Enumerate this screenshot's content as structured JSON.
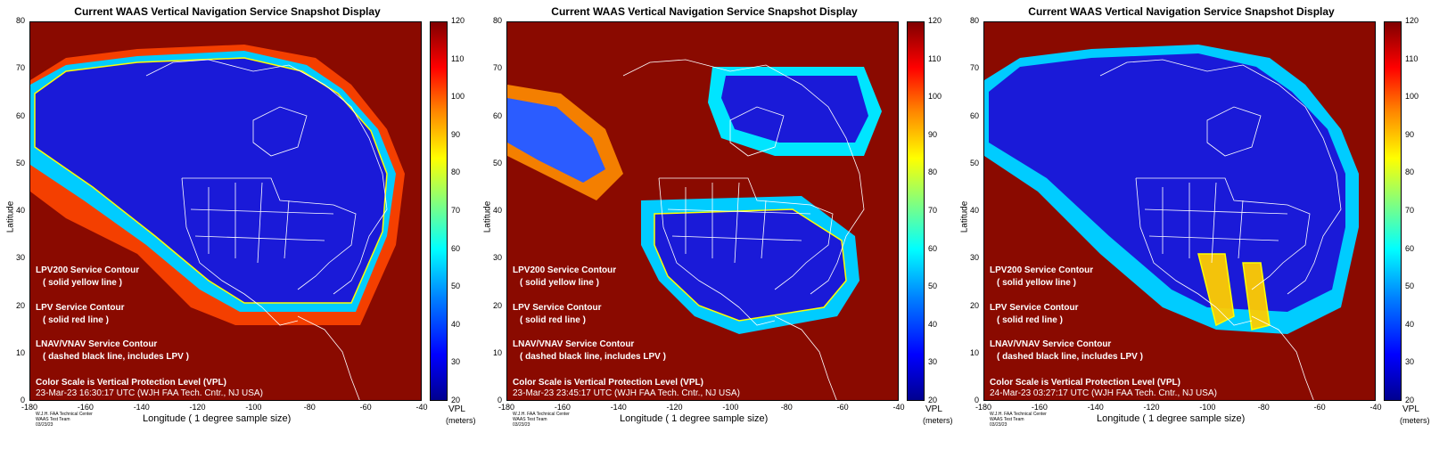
{
  "panels": [
    {
      "title": "Current WAAS Vertical Navigation Service Snapshot Display",
      "timestamp": "23-Mar-23 16:30:17 UTC  (WJH FAA Tech. Cntr., NJ USA)"
    },
    {
      "title": "Current WAAS Vertical Navigation Service Snapshot Display",
      "timestamp": "23-Mar-23 23:45:17 UTC  (WJH FAA Tech. Cntr., NJ USA)"
    },
    {
      "title": "Current WAAS Vertical Navigation Service Snapshot Display",
      "timestamp": "24-Mar-23 03:27:17 UTC  (WJH FAA Tech. Cntr., NJ USA)"
    }
  ],
  "axes": {
    "ylabel": "Latitude",
    "xlabel": "Longitude   ( 1 degree sample size)",
    "yticks": [
      "80",
      "70",
      "60",
      "50",
      "40",
      "30",
      "20",
      "10",
      "0"
    ],
    "xticks": [
      "-180",
      "-160",
      "-140",
      "-120",
      "-100",
      "-80",
      "-60",
      "-40"
    ]
  },
  "legend": {
    "lpv200": "LPV200 Service Contour",
    "lpv200_sub": "( solid yellow line )",
    "lpv": "LPV Service Contour",
    "lpv_sub": "( solid red line )",
    "lnav": "LNAV/VNAV Service Contour",
    "lnav_sub": "( dashed black line, includes LPV )",
    "scale": "Color Scale is Vertical Protection Level (VPL)"
  },
  "colorbar": {
    "ticks": [
      "120",
      "110",
      "100",
      "90",
      "80",
      "70",
      "60",
      "50",
      "40",
      "30",
      "20"
    ],
    "label": "VPL",
    "unit": "(meters)",
    "colors": [
      "#00008f",
      "#0000ff",
      "#0080ff",
      "#00ffff",
      "#ffff00",
      "#ff8000",
      "#ff0000",
      "#800000"
    ]
  },
  "credit": {
    "line1": "W.J.H. FAA Technical Center",
    "line2": "WAAS Test Team",
    "line3": "03/23/23"
  }
}
